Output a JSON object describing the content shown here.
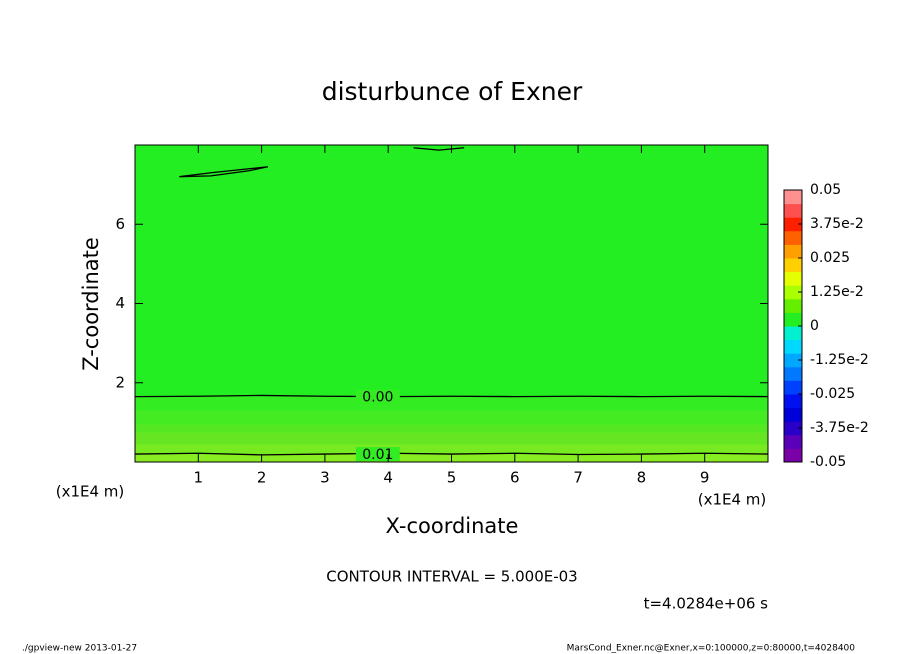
{
  "chart_data": {
    "type": "contour",
    "title": "disturbunce of Exner",
    "xlabel": "X-coordinate",
    "ylabel": "Z-coordinate",
    "xunit": "(x1E4 m)",
    "yunit": "(x1E4 m)",
    "xlim": [
      0,
      10
    ],
    "ylim": [
      0,
      8
    ],
    "xticks": [
      1,
      2,
      3,
      4,
      5,
      6,
      7,
      8,
      9
    ],
    "yticks": [
      2,
      4,
      6
    ],
    "background": "#22ee22",
    "layers": [
      {
        "y": [
          1.3,
          1.65
        ],
        "color": "#33ec22"
      },
      {
        "y": [
          0.95,
          1.3
        ],
        "color": "#44ea22"
      },
      {
        "y": [
          0.75,
          0.95
        ],
        "color": "#55e822"
      },
      {
        "y": [
          0.45,
          0.75
        ],
        "color": "#66e622"
      },
      {
        "y": [
          0.2,
          0.45
        ],
        "color": "#77ea22"
      },
      {
        "y": [
          0,
          0.2
        ],
        "color": "#88ee22"
      }
    ],
    "contours": [
      {
        "label": "0.00",
        "label_x": 3.52,
        "x": [
          0,
          1,
          2,
          3,
          4,
          5,
          6,
          7,
          8,
          9,
          10
        ],
        "y": [
          1.65,
          1.66,
          1.68,
          1.66,
          1.65,
          1.66,
          1.65,
          1.66,
          1.65,
          1.66,
          1.65
        ]
      },
      {
        "label": "0.01",
        "label_x": 3.52,
        "x": [
          0,
          1,
          2,
          3,
          4,
          5,
          6,
          7,
          8,
          9,
          10
        ],
        "y": [
          0.2,
          0.22,
          0.18,
          0.2,
          0.22,
          0.2,
          0.22,
          0.19,
          0.2,
          0.22,
          0.2
        ]
      },
      {
        "x": [
          0.7,
          1.2,
          1.8,
          2.1,
          1.8,
          1.2,
          0.7
        ],
        "y": [
          7.2,
          7.3,
          7.4,
          7.45,
          7.35,
          7.22,
          7.2
        ]
      },
      {
        "x": [
          4.4,
          4.8,
          5.2
        ],
        "y": [
          7.93,
          7.87,
          7.93
        ]
      }
    ],
    "clim": [
      -0.05,
      0.05
    ],
    "colors": [
      "#7a00a8",
      "#5a00b8",
      "#2800c8",
      "#0000d8",
      "#0010f0",
      "#0040ff",
      "#0078ff",
      "#00a8ff",
      "#00d8ff",
      "#00f0d0",
      "#22ee22",
      "#66ee00",
      "#aaff00",
      "#e6ff00",
      "#ffd000",
      "#ffa000",
      "#ff6000",
      "#ff2000",
      "#ff5050",
      "#ff9090"
    ],
    "cticks": [
      -0.05,
      {
        "value": -0.0375,
        "label": "-3.75e-2"
      },
      -0.025,
      {
        "value": -0.0125,
        "label": "-1.25e-2"
      },
      0,
      {
        "value": 0.0125,
        "label": "1.25e-2"
      },
      0.025,
      {
        "value": 0.0375,
        "label": "3.75e-2"
      },
      0.05
    ],
    "note": "CONTOUR INTERVAL = 5.000E-03",
    "time": "t=4.0284e+06 s",
    "footer_left": "./gpview-new  2013-01-27",
    "footer_right": "MarsCond_Exner.nc@Exner,x=0:100000,z=0:80000,t=4028400"
  }
}
